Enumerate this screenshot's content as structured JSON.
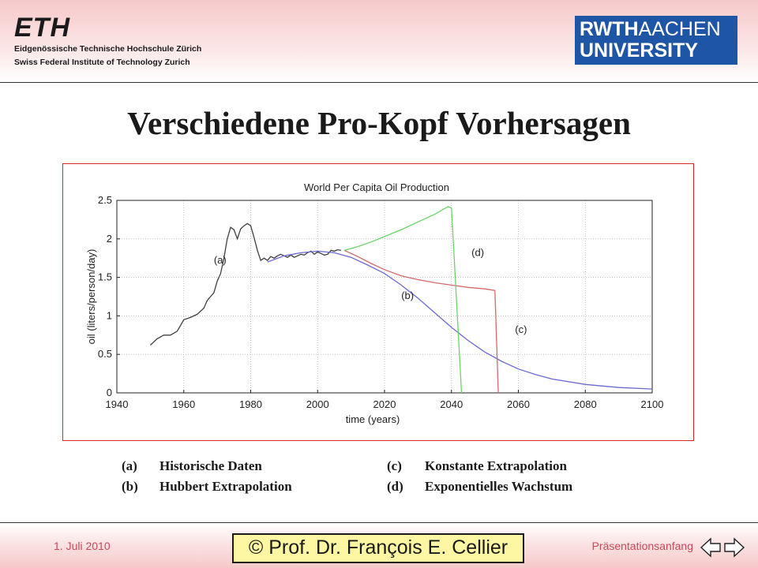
{
  "header": {
    "eth_logo": {
      "wordmark": "ETH",
      "line1": "Eidgenössische Technische Hochschule Zürich",
      "line2": "Swiss Federal Institute of Technology Zurich"
    },
    "rwth_logo": {
      "line1_a": "RWTH",
      "line1_b": "AACHEN",
      "line2": "UNIVERSITY"
    }
  },
  "slide": {
    "title": "Verschiedene Pro-Kopf Vorhersagen"
  },
  "legend": {
    "items": [
      {
        "key": "(a)",
        "label": "Historische Daten"
      },
      {
        "key": "(b)",
        "label": "Hubbert Extrapolation"
      },
      {
        "key": "(c)",
        "label": "Konstante Extrapolation"
      },
      {
        "key": "(d)",
        "label": "Exponentielles Wachstum"
      }
    ]
  },
  "footer": {
    "date": "1. Juli 2010",
    "author": "© Prof. Dr. François E. Cellier",
    "link": "Präsentationsanfang"
  },
  "colors": {
    "accent": "#c7495c",
    "series_a": "#404040",
    "series_b": "#6a6ad4",
    "series_c": "#d46a6a",
    "series_d": "#6ad46a"
  },
  "chart_data": {
    "type": "line",
    "title": "World Per Capita Oil Production",
    "xlabel": "time (years)",
    "ylabel": "oil (liters/person/day)",
    "xlim": [
      1940,
      2100
    ],
    "ylim": [
      0,
      2.5
    ],
    "x_ticks": [
      1940,
      1960,
      1980,
      2000,
      2020,
      2040,
      2060,
      2080,
      2100
    ],
    "y_ticks": [
      0,
      0.5,
      1,
      1.5,
      2,
      2.5
    ],
    "grid": true,
    "series": [
      {
        "name": "(a)",
        "label_at": [
          1969,
          1.68
        ],
        "points": [
          [
            1950,
            0.62
          ],
          [
            1952,
            0.7
          ],
          [
            1954,
            0.75
          ],
          [
            1956,
            0.75
          ],
          [
            1958,
            0.8
          ],
          [
            1960,
            0.95
          ],
          [
            1962,
            0.98
          ],
          [
            1964,
            1.02
          ],
          [
            1966,
            1.1
          ],
          [
            1967,
            1.2
          ],
          [
            1968,
            1.25
          ],
          [
            1969,
            1.3
          ],
          [
            1970,
            1.45
          ],
          [
            1971,
            1.55
          ],
          [
            1972,
            1.75
          ],
          [
            1973,
            2.0
          ],
          [
            1974,
            2.15
          ],
          [
            1975,
            2.12
          ],
          [
            1976,
            2.0
          ],
          [
            1977,
            2.13
          ],
          [
            1978,
            2.17
          ],
          [
            1979,
            2.2
          ],
          [
            1980,
            2.17
          ],
          [
            1981,
            2.02
          ],
          [
            1982,
            1.85
          ],
          [
            1983,
            1.72
          ],
          [
            1984,
            1.75
          ],
          [
            1985,
            1.72
          ],
          [
            1986,
            1.77
          ],
          [
            1987,
            1.75
          ],
          [
            1988,
            1.78
          ],
          [
            1989,
            1.8
          ],
          [
            1990,
            1.78
          ],
          [
            1991,
            1.76
          ],
          [
            1992,
            1.79
          ],
          [
            1993,
            1.76
          ],
          [
            1994,
            1.78
          ],
          [
            1995,
            1.8
          ],
          [
            1996,
            1.79
          ],
          [
            1997,
            1.82
          ],
          [
            1998,
            1.84
          ],
          [
            1999,
            1.8
          ],
          [
            2000,
            1.83
          ],
          [
            2001,
            1.81
          ],
          [
            2002,
            1.79
          ],
          [
            2003,
            1.8
          ],
          [
            2004,
            1.85
          ],
          [
            2005,
            1.84
          ],
          [
            2006,
            1.86
          ],
          [
            2007,
            1.85
          ]
        ]
      },
      {
        "name": "(b)",
        "label_at": [
          2025,
          1.22
        ],
        "points": [
          [
            1985,
            1.7
          ],
          [
            1990,
            1.78
          ],
          [
            1995,
            1.82
          ],
          [
            2000,
            1.84
          ],
          [
            2005,
            1.82
          ],
          [
            2010,
            1.76
          ],
          [
            2015,
            1.66
          ],
          [
            2020,
            1.55
          ],
          [
            2025,
            1.4
          ],
          [
            2030,
            1.23
          ],
          [
            2035,
            1.04
          ],
          [
            2040,
            0.85
          ],
          [
            2045,
            0.68
          ],
          [
            2050,
            0.53
          ],
          [
            2055,
            0.41
          ],
          [
            2060,
            0.31
          ],
          [
            2065,
            0.24
          ],
          [
            2070,
            0.18
          ],
          [
            2080,
            0.11
          ],
          [
            2090,
            0.07
          ],
          [
            2100,
            0.05
          ]
        ]
      },
      {
        "name": "(c)",
        "label_at": [
          2059,
          0.78
        ],
        "points": [
          [
            2008,
            1.85
          ],
          [
            2012,
            1.77
          ],
          [
            2016,
            1.68
          ],
          [
            2020,
            1.6
          ],
          [
            2025,
            1.52
          ],
          [
            2030,
            1.47
          ],
          [
            2035,
            1.43
          ],
          [
            2040,
            1.4
          ],
          [
            2045,
            1.37
          ],
          [
            2050,
            1.35
          ],
          [
            2053,
            1.33
          ],
          [
            2054,
            0
          ]
        ]
      },
      {
        "name": "(d)",
        "label_at": [
          2046,
          1.78
        ],
        "points": [
          [
            2008,
            1.85
          ],
          [
            2012,
            1.9
          ],
          [
            2016,
            1.96
          ],
          [
            2020,
            2.03
          ],
          [
            2025,
            2.12
          ],
          [
            2030,
            2.22
          ],
          [
            2035,
            2.32
          ],
          [
            2039,
            2.42
          ],
          [
            2040,
            2.4
          ],
          [
            2043,
            0
          ]
        ]
      }
    ]
  }
}
